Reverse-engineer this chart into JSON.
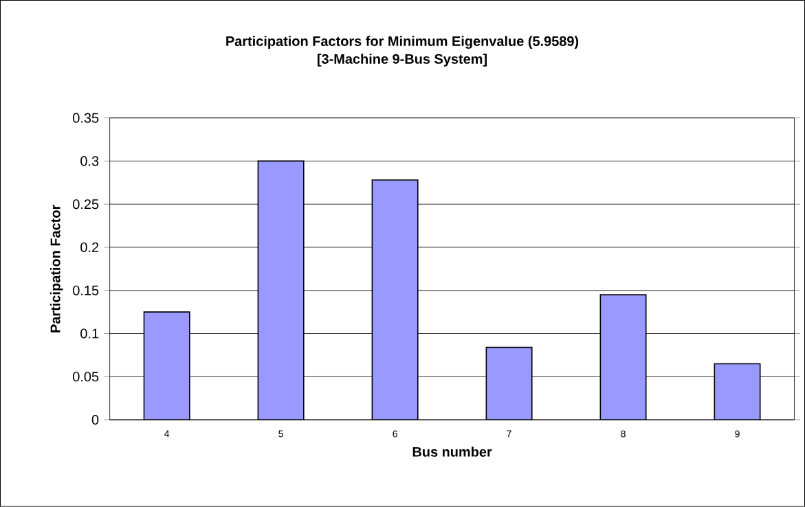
{
  "chart_data": {
    "type": "bar",
    "title": "Participation Factors for Minimum Eigenvalue (5.9589)",
    "subtitle": "[3-Machine 9-Bus System]",
    "xlabel": "Bus number",
    "ylabel": "Participation Factor",
    "categories": [
      "4",
      "5",
      "6",
      "7",
      "8",
      "9"
    ],
    "values": [
      0.125,
      0.3,
      0.278,
      0.084,
      0.145,
      0.065
    ],
    "color": "#9999ff",
    "ylim": [
      0,
      0.35
    ],
    "yticks": [
      0,
      0.05,
      0.1,
      0.15,
      0.2,
      0.25,
      0.3,
      0.35
    ],
    "grid": "y"
  }
}
